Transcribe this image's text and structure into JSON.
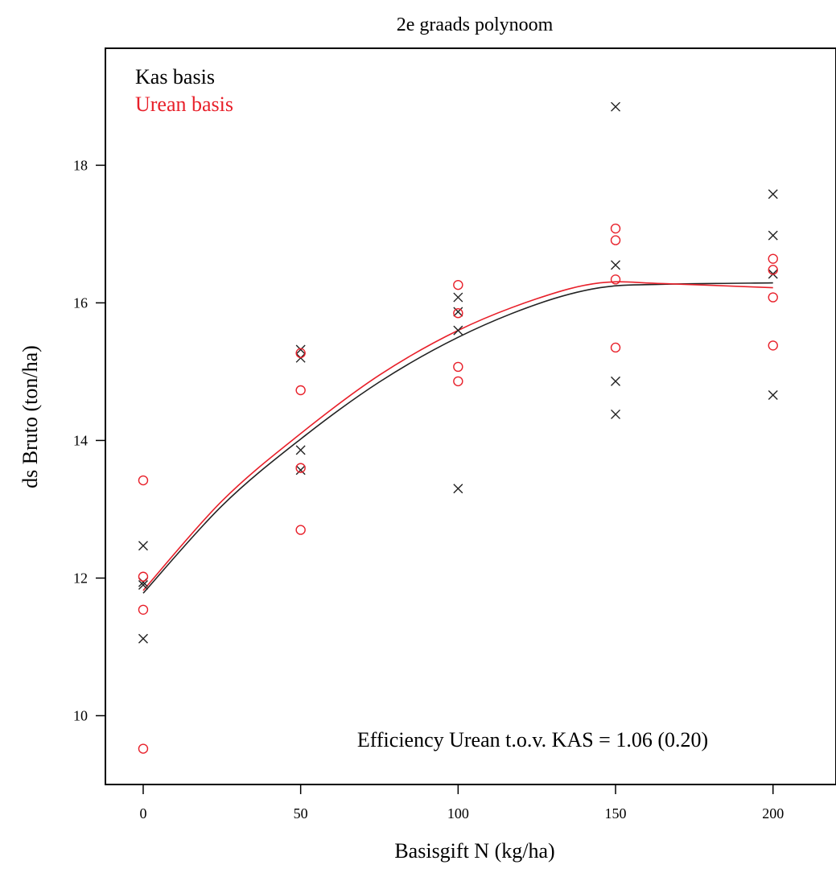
{
  "chart_data": {
    "type": "scatter",
    "title": "2e graads polynoom",
    "xlabel": "Basisgift N (kg/ha)",
    "ylabel": "ds Bruto (ton/ha)",
    "xlim": [
      -12,
      220
    ],
    "ylim": [
      9.0,
      19.7
    ],
    "x_ticks": [
      0,
      50,
      100,
      150,
      200
    ],
    "y_ticks": [
      10,
      12,
      14,
      16,
      18
    ],
    "grid": false,
    "legend_position": "top-left",
    "annotation": "Efficiency Urean t.o.v. KAS = 1.06 (0.20)",
    "series": [
      {
        "name": "Kas basis",
        "marker": "x",
        "color": "#222222",
        "points": [
          {
            "x": 0,
            "y": 12.47
          },
          {
            "x": 0,
            "y": 11.94
          },
          {
            "x": 0,
            "y": 11.9
          },
          {
            "x": 0,
            "y": 11.12
          },
          {
            "x": 50,
            "y": 15.32
          },
          {
            "x": 50,
            "y": 15.2
          },
          {
            "x": 50,
            "y": 13.86
          },
          {
            "x": 50,
            "y": 13.57
          },
          {
            "x": 100,
            "y": 16.08
          },
          {
            "x": 100,
            "y": 15.87
          },
          {
            "x": 100,
            "y": 15.6
          },
          {
            "x": 100,
            "y": 13.3
          },
          {
            "x": 150,
            "y": 18.85
          },
          {
            "x": 150,
            "y": 16.55
          },
          {
            "x": 150,
            "y": 14.86
          },
          {
            "x": 150,
            "y": 14.38
          },
          {
            "x": 200,
            "y": 17.58
          },
          {
            "x": 200,
            "y": 16.98
          },
          {
            "x": 200,
            "y": 16.42
          },
          {
            "x": 200,
            "y": 14.66
          }
        ],
        "fit": [
          {
            "x": 0,
            "y": 11.78
          },
          {
            "x": 25,
            "y": 13.05
          },
          {
            "x": 50,
            "y": 14.02
          },
          {
            "x": 75,
            "y": 14.85
          },
          {
            "x": 100,
            "y": 15.5
          },
          {
            "x": 125,
            "y": 15.98
          },
          {
            "x": 145,
            "y": 16.22
          },
          {
            "x": 165,
            "y": 16.27
          },
          {
            "x": 200,
            "y": 16.29
          }
        ]
      },
      {
        "name": "Urean basis",
        "marker": "o",
        "color": "#e8202a",
        "points": [
          {
            "x": 0,
            "y": 13.42
          },
          {
            "x": 0,
            "y": 12.02
          },
          {
            "x": 0,
            "y": 11.54
          },
          {
            "x": 0,
            "y": 9.52
          },
          {
            "x": 50,
            "y": 15.27
          },
          {
            "x": 50,
            "y": 14.73
          },
          {
            "x": 50,
            "y": 13.6
          },
          {
            "x": 50,
            "y": 12.7
          },
          {
            "x": 100,
            "y": 16.26
          },
          {
            "x": 100,
            "y": 15.85
          },
          {
            "x": 100,
            "y": 15.07
          },
          {
            "x": 100,
            "y": 14.86
          },
          {
            "x": 150,
            "y": 17.08
          },
          {
            "x": 150,
            "y": 16.91
          },
          {
            "x": 150,
            "y": 16.34
          },
          {
            "x": 150,
            "y": 15.35
          },
          {
            "x": 200,
            "y": 16.64
          },
          {
            "x": 200,
            "y": 16.48
          },
          {
            "x": 200,
            "y": 16.08
          },
          {
            "x": 200,
            "y": 15.38
          }
        ],
        "fit": [
          {
            "x": 0,
            "y": 11.82
          },
          {
            "x": 25,
            "y": 13.12
          },
          {
            "x": 50,
            "y": 14.1
          },
          {
            "x": 75,
            "y": 14.95
          },
          {
            "x": 100,
            "y": 15.6
          },
          {
            "x": 125,
            "y": 16.06
          },
          {
            "x": 145,
            "y": 16.29
          },
          {
            "x": 165,
            "y": 16.28
          },
          {
            "x": 200,
            "y": 16.22
          }
        ]
      }
    ]
  }
}
